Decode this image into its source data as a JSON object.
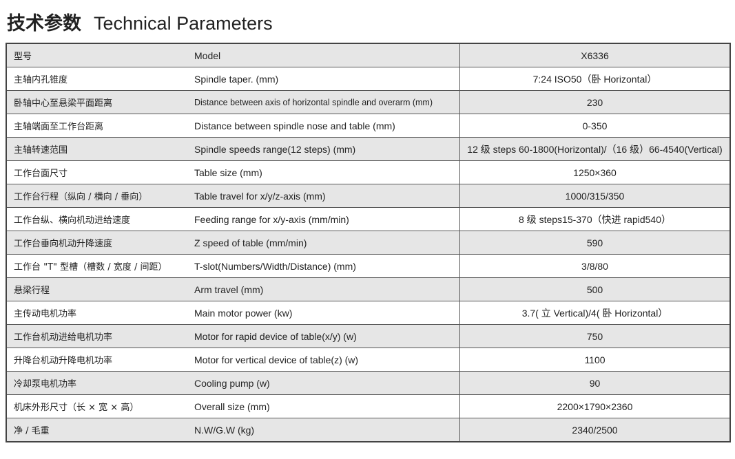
{
  "title": {
    "cn": "技术参数",
    "en": "Technical Parameters"
  },
  "rows": [
    {
      "cn": "型号",
      "en": "Model",
      "value": "X6336"
    },
    {
      "cn": "主轴内孔锥度",
      "en": "Spindle taper. (mm)",
      "value": "7:24  ISO50（卧 Horizontal）"
    },
    {
      "cn": "卧轴中心至悬梁平面距离",
      "en": "Distance between axis of horizontal spindle and overarm (mm)",
      "value": "230"
    },
    {
      "cn": "主轴端面至工作台距离",
      "en": "Distance between  spindle nose and table (mm)",
      "value": "0-350"
    },
    {
      "cn": "主轴转速范围",
      "en": "Spindle speeds range(12 steps) (mm)",
      "value": "12 级 steps 60-1800(Horizontal)/（16 级）66-4540(Vertical)"
    },
    {
      "cn": "工作台面尺寸",
      "en": "Table size (mm)",
      "value": "1250×360"
    },
    {
      "cn": "工作台行程（纵向 / 横向 / 垂向）",
      "en": "Table travel for x/y/z-axis (mm)",
      "value": "1000/315/350"
    },
    {
      "cn": "工作台纵、横向机动进给速度",
      "en": "Feeding range for x/y-axis (mm/min)",
      "value": "8 级 steps15-370（快进 rapid540）"
    },
    {
      "cn": "工作台垂向机动升降速度",
      "en": "Z speed of table (mm/min)",
      "value": "590"
    },
    {
      "cn": "工作台 \"T\" 型槽（槽数 / 宽度 / 间距）",
      "en": "T-slot(Numbers/Width/Distance) (mm)",
      "value": "3/8/80"
    },
    {
      "cn": "悬梁行程",
      "en": "Arm travel (mm)",
      "value": "500"
    },
    {
      "cn": "主传动电机功率",
      "en": "Main motor power (kw)",
      "value": "3.7( 立 Vertical)/4( 卧 Horizontal）"
    },
    {
      "cn": "工作台机动进给电机功率",
      "en": "Motor for rapid device of table(x/y) (w)",
      "value": "750"
    },
    {
      "cn": "升降台机动升降电机功率",
      "en": "Motor for vertical  device of table(z) (w)",
      "value": "1100"
    },
    {
      "cn": "冷却泵电机功率",
      "en": "Cooling pump (w)",
      "value": "90"
    },
    {
      "cn": "机床外形尺寸（长 × 宽 × 高）",
      "en": "Overall size (mm)",
      "value": "2200×1790×2360"
    },
    {
      "cn": "净 / 毛重",
      "en": "N.W/G.W (kg)",
      "value": "2340/2500"
    }
  ]
}
